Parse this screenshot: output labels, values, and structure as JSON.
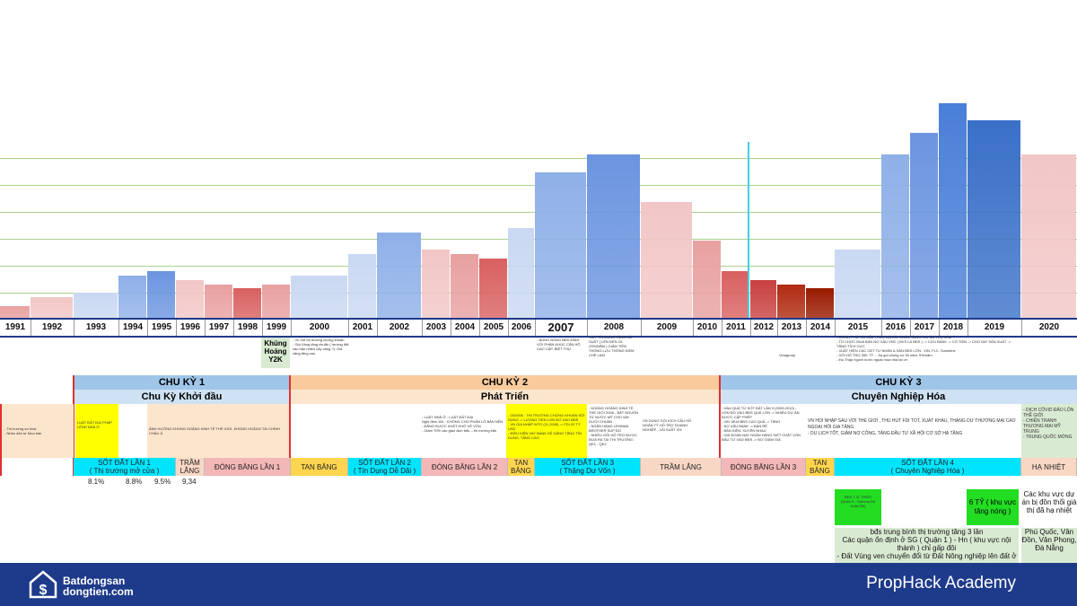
{
  "chart_data": {
    "type": "bar",
    "categories": [
      "1991",
      "1992",
      "1993",
      "1994",
      "1995",
      "1996",
      "1997",
      "1998",
      "1999",
      "2000",
      "2001",
      "2002",
      "2003",
      "2004",
      "2005",
      "2006",
      "2007",
      "2008",
      "2009",
      "2010",
      "2011",
      "2012",
      "2013",
      "2014",
      "2015",
      "2016",
      "2017",
      "2018",
      "2019",
      "2020"
    ],
    "values": [
      15,
      25,
      30,
      50,
      55,
      45,
      40,
      35,
      40,
      50,
      75,
      100,
      80,
      75,
      70,
      105,
      170,
      190,
      135,
      90,
      55,
      45,
      40,
      35,
      80,
      190,
      215,
      250,
      230,
      190
    ],
    "colors": [
      "#e8a0a0",
      "#f2c6c6",
      "#c9d8f2",
      "#8fb0e8",
      "#6c95e0",
      "#f2c6c6",
      "#e8a0a0",
      "#d96060",
      "#e8a0a0",
      "#c9d8f2",
      "#c9d8f2",
      "#8fb0e8",
      "#f2c6c6",
      "#e8a0a0",
      "#d96060",
      "#c9d8f2",
      "#8fb0e8",
      "#6c95e0",
      "#f2c6c6",
      "#e8a0a0",
      "#d96060",
      "#c94040",
      "#b02a10",
      "#9a1a00",
      "#c9d8f2",
      "#8fb0e8",
      "#6c95e0",
      "#4a7fd8",
      "#3a70c8",
      "#f2c6c6"
    ],
    "ylim": [
      0,
      260
    ],
    "grid": true
  },
  "year_row": [
    "1991",
    "1992",
    "1993",
    "1994",
    "1995",
    "1996",
    "1997",
    "1998",
    "1999",
    "2000",
    "2001",
    "2002",
    "2003",
    "2004",
    "2005",
    "2006",
    "2007",
    "2008",
    "2009",
    "2010",
    "2011",
    "2012",
    "2013",
    "2014",
    "2015",
    "2016",
    "2017",
    "2018",
    "2019",
    "2020"
  ],
  "crisis_label": "Khủng Hoảng Y2K",
  "notes": {
    "n2000": "- Vn mở thị trường chứng khoán\n- Giá Vàng tăng chuẩn ( trường đất vào hàn nhiều cây vàng ?), Giá xăng tăng cao",
    "n2007": "- BONG BÓNG BĐS ĐỈNH VỚI PHÂN KHÚC CĂN HỘ CAO CẤP, BIỆT THỰ",
    "n2008": "SIẾT TÍN DỤNG TĂNG LÃI SUẤT ( LÊN ĐẾN 20-23%/NĂM ) GIẢM TIỀN THÔNG LƯU THÔNG KIỀM CHẾ LẠM",
    "n2012": "Vinagroup",
    "n2015": "- CHÍNH PHỦ TÁI CẤU TRÚC LẠI DN, NGÂN HÀNG, DỰ ÁN YẾU KÉM\n- TỔ CHỨC MUA BÁN NỢ XẤU VNC ( BVS LÀ BĐS ) -> CỨU BANK -> CỐ TIỀN -> CHO VAY SẢN XUẤT -> TĂNG TÍCH CỰC\n- XUẤT HIỆN CÁC CĐT TƯ NHÂN & SÀN BĐS LỚN : VIN, FLC, Sunshine\n- GÓI HỖ TRỢ 30K TỶ ... ba gói chung cư 30 năm, 5%/năm\n- thu Thập người nước ngoài mua nhà tại vn"
  },
  "cycles": [
    {
      "head": "CHU KỲ 1",
      "sub": "Chu Kỳ Khởi đầu"
    },
    {
      "head": "CHU KỲ 2",
      "sub": "Phát Triển"
    },
    {
      "head": "CHU KỲ 3",
      "sub": "Chuyên Nghiệp Hóa"
    }
  ],
  "events": {
    "e1991": "- Thị trường sơ khai\n- Nhân dân tự Mua bán",
    "e1993": "LUẬT ĐẤT ĐAI PHÁP LỆNH NHÀ Ở",
    "e1996": "ẢNH HƯỞNG KHỦNG HOẢNG KINH TẾ THẾ GIỚI, KHỦNG HOẢNG TÀI CHÍNH CHÂU Á",
    "e2003": "- LUẬT NHÀ Ở - LUẬT ĐẤT ĐAI\nNghị định 181 : KHÔNG CHO PHÂN LÔ BÁN NỀN\n- ĐĂNG ĐƯỢC KHẤT KHỚ VỀ VỐN\n- Giảm 70% các giao dịch bđs -- thị trường bđs",
    "e2006": "- 03/2006 : THỊ TRƯỜNG CHỨNG KHOÁN SÔI SÙNG -> LƯỢNG TIỀN LỚN ĐỔ VÀO BĐS\n- VN GIA NHẬP WTO (11-2006) -> FDI 20 TỶ USD\n- ĐIỀU KIỆN VAY BANK DỄ DÀNG TĂNG TÍN DỤNG, TĂNG CAO",
    "e2008": "- KHỦNG HOẢNG KINH TẾ THẾ GIỚI 2008 - BẮT NGUỒN TỪ NƯỚC MỸ CHO VAY DƯỚI CHUẨN\n- NGÂN HÀNG LEHMAN BROTHER SỤP ĐỔ\n- NHIỀU GÓI HỖ TRỢ ĐƯỢC ĐƯA RA TẠI THỊ TRƯỜNG : QE1 - QE2",
    "e2010": "VN DÙNG GÓI KÍCH CẦU HỖ NGÂN TỶ HỖ TRỢ DOANH NGHIỆP - LÃI SUẤT 4%",
    "e2011": "- HÀU QUẢ TỪ SỐT ĐẤT LẦN 3 (2009-2010) - VỐN ĐỔ VÀO BĐS QUÁ LỚN -> NHIỀU DỰ ÁN ĐƯỢC CẤP PHÉP\n- VAY MUA BĐS CAO QUÁ -> TĂNG\n- NỢ XẤU BANK -> BÁN RẺ\n- BÁN KIỆN, XUYÊN NHAU\n- GIÁ ĐOAN NAY NGÂN HÀNG SIẾT CHẶT VỐN ĐẦU TƯ VÀO BĐS -> NỢ GIẢM GIÁ",
    "e2015": "VN HỘI NHẬP SÂU VỚI THẾ GIỚI , THU HÚT FDI TỐT, XUẤT KHẨU, THẶNG DƯ THƯƠNG MẠI CAO\nNGOẠI HỐI GIA TĂNG\n- DU LỊCH TỐT, GIẢM NỢ CÔNG, TĂNG ĐẦU TƯ XÃ HỘI CƠ SỞ HẠ TẦNG",
    "e2020": "- DỊCH CÔVID ĐẢO LỘN THẾ GIỚI\n- CHIẾN TRANH THƯƠNG MẠI MỸ TRUNG\n- TRUNG QUỐC MỞNG"
  },
  "phases": [
    {
      "label": "SỐT ĐẤT LẦN 1\n( Thị trường mở cửa )",
      "color": "#00e5ff"
    },
    {
      "label": "TRẦM LẮNG",
      "color": "#f8d7c4"
    },
    {
      "label": "ĐÓNG BĂNG LẦN 1",
      "color": "#f4b7b7"
    },
    {
      "label": "TAN BĂNG",
      "color": "#ffd54f"
    },
    {
      "label": "SỐT ĐẤT LẦN 2\n( Tín Dụng Dễ Dãi )",
      "color": "#00e5ff"
    },
    {
      "label": "ĐÓNG BĂNG LẦN 2",
      "color": "#f4b7b7"
    },
    {
      "label": "TAN BĂNG",
      "color": "#ffd54f"
    },
    {
      "label": "SỐT ĐẤT LẦN 3\n( Thặng Dư Vốn )",
      "color": "#00e5ff"
    },
    {
      "label": "TRẦM LẮNG",
      "color": "#f8d7c4"
    },
    {
      "label": "ĐÓNG BĂNG LẦN 3",
      "color": "#f4b7b7"
    },
    {
      "label": "TAN BĂNG",
      "color": "#ffd54f"
    },
    {
      "label": "SỐT ĐẤT LẦN 4\n( Chuyên Nghiệp Hóa )",
      "color": "#00e5ff"
    },
    {
      "label": "HẠ NHIỆT",
      "color": "#f8d7c4"
    }
  ],
  "percents": [
    "8.1%",
    "8.8%",
    "9.5%",
    "9,34"
  ],
  "green_boxes": {
    "g2015": "BĐS 1 11 TRIỆU\n(Quận 9 - Gamma Đô Xuân Đỏ)",
    "g2019": "6 TỶ ( khu vực tăng nóng )"
  },
  "summary": {
    "line1": "bđs trung bình thị trường tăng 3 lần",
    "line2": "Các quận ổn định ở SG ( Quận 1 ) - Hn ( khu vực nội thành ) chỉ gấp đôi",
    "line3": "- Đất Vùng ven chuyển đổi từ Đất Nông nghiệp lên đất ở",
    "side1": "Các khu vực dự án bị đồn thổi giá thị đã hạ nhiệt",
    "side2": "Phú Quốc, Vân Đồn, Vân Phong, Đà Nẵng"
  },
  "footer": {
    "logo_line1": "Batdongsan",
    "logo_line2": "dongtien.com",
    "brand": "PropHack Academy"
  },
  "colors": {
    "footer": "#1e3a8a",
    "accent_cyan": "#00e5ff",
    "yellow": "#ffff00",
    "green": "#22dd22"
  }
}
